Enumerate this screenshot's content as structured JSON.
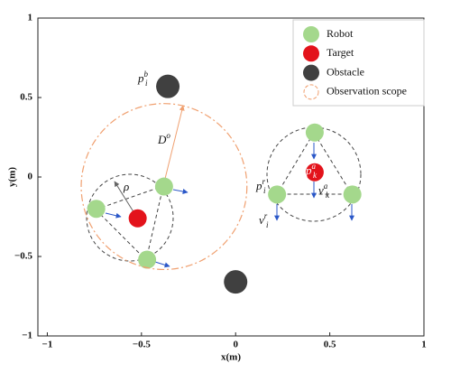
{
  "chart_data": {
    "type": "scatter",
    "xlabel": "x(m)",
    "ylabel": "y(m)",
    "xlim": [
      -1.05,
      1
    ],
    "ylim": [
      -1,
      1
    ],
    "xticks": [
      {
        "value": -1,
        "label": "−1"
      },
      {
        "value": -0.5,
        "label": "−0.5"
      },
      0,
      0.5,
      1
    ],
    "yticks": [
      {
        "value": -1,
        "label": "−1"
      },
      {
        "value": -0.5,
        "label": "−0.5"
      },
      0,
      0.5,
      1
    ],
    "legend": "upper right",
    "series": [
      {
        "name": "Robot",
        "color": "#a4d88c",
        "x": [
          -0.74,
          -0.38,
          -0.47,
          0.42,
          0.22,
          0.62
        ],
        "values": [
          -0.2,
          -0.06,
          -0.52,
          0.28,
          -0.11,
          -0.11
        ]
      },
      {
        "name": "Target",
        "color": "#e3131b",
        "x": [
          -0.52,
          0.42
        ],
        "values": [
          -0.26,
          0.03
        ]
      },
      {
        "name": "Obstacle",
        "color": "#404040",
        "x": [
          -0.36,
          0.0
        ],
        "values": [
          0.57,
          -0.66
        ]
      },
      {
        "name": "Observation scope",
        "color": "#f0a070",
        "x": [
          -0.38
        ],
        "values": [
          -0.06
        ],
        "radius": [
          0.44
        ]
      }
    ],
    "annotations": [
      {
        "base": "p",
        "sub": "i",
        "sup": "b"
      },
      {
        "base": "D",
        "sup": "o"
      },
      {
        "base": "ρ"
      },
      {
        "base": "p",
        "sub": "i",
        "sup": "r"
      },
      {
        "base": "p",
        "sub": "k",
        "sup": "a"
      },
      {
        "base": "v",
        "sub": "k",
        "sup": "a"
      },
      {
        "base": "v",
        "sub": "i",
        "sup": "r"
      }
    ]
  }
}
